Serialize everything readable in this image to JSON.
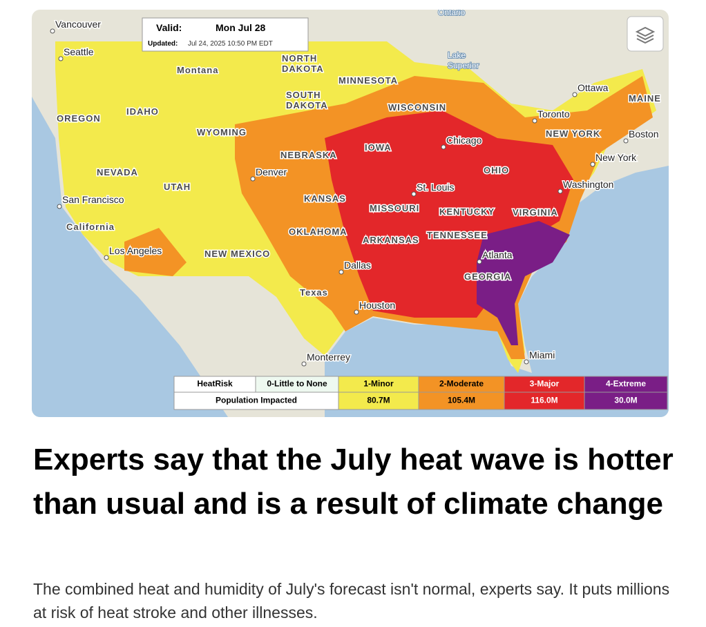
{
  "map": {
    "valid_label": "Valid:",
    "valid_date": "Mon Jul 28",
    "updated_label": "Updated:",
    "updated_date": "Jul 24, 2025 10:50 PM EDT",
    "labels": [
      [
        "Ontario"
      ],
      [
        "Vancouver"
      ],
      [
        "Seattle"
      ],
      [
        "Montana"
      ],
      [
        "NORTH",
        "DAKOTA"
      ],
      [
        "Lake",
        "Superior"
      ],
      [
        "MINNESOTA"
      ],
      [
        "Ottawa"
      ],
      [
        "MAINE"
      ],
      [
        "SOUTH",
        "DAKOTA"
      ],
      [
        "IDAHO"
      ],
      [
        "WISCONSIN"
      ],
      [
        "Toronto"
      ],
      [
        "OREGON"
      ],
      [
        "NEW YORK"
      ],
      [
        "Boston"
      ],
      [
        "WYOMING"
      ],
      [
        "Chicago"
      ],
      [
        "IOWA"
      ],
      [
        "NEBRASKA"
      ],
      [
        "New York"
      ],
      [
        "OHIO"
      ],
      [
        "NEVADA"
      ],
      [
        "Denver"
      ],
      [
        "Washington"
      ],
      [
        "UTAH"
      ],
      [
        "St. Louis"
      ],
      [
        "KANSAS"
      ],
      [
        "San Francisco"
      ],
      [
        "MISSOURI"
      ],
      [
        "KENTUCKY"
      ],
      [
        "VIRGINIA"
      ],
      [
        "California"
      ],
      [
        "OKLAHOMA"
      ],
      [
        "TENNESSEE"
      ],
      [
        "ARKANSAS"
      ],
      [
        "Los Angeles"
      ],
      [
        "NEW MEXICO"
      ],
      [
        "Atlanta"
      ],
      [
        "Dallas"
      ],
      [
        "GEORGIA"
      ],
      [
        "Texas"
      ],
      [
        "Houston"
      ],
      [
        "Miami"
      ],
      [
        "Monterrey"
      ]
    ],
    "legend": {
      "header": "HeatRisk",
      "row_label": "Population Impacted",
      "levels": [
        {
          "name": "0-Little to None"
        },
        {
          "name": "1-Minor",
          "population": "80.7M"
        },
        {
          "name": "2-Moderate",
          "population": "105.4M"
        },
        {
          "name": "3-Major",
          "population": "116.0M"
        },
        {
          "name": "4-Extreme",
          "population": "30.0M"
        }
      ]
    }
  },
  "article": {
    "headline": "Experts say that the July heat wave is hotter than usual and is a result of climate change",
    "summary": "The combined heat and humidity of July's forecast isn't normal, experts say. It puts millions at risk of heat stroke and other illnesses."
  }
}
